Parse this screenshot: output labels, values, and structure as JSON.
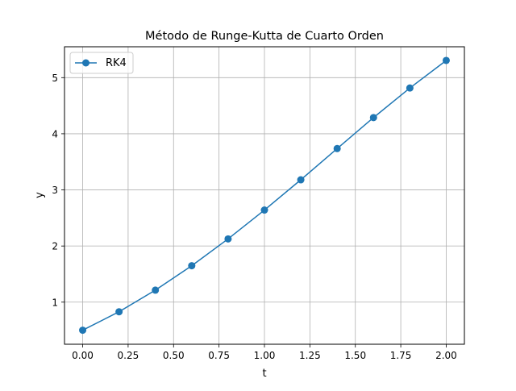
{
  "chart_data": {
    "type": "line",
    "title": "Método de Runge-Kutta de Cuarto Orden",
    "xlabel": "t",
    "ylabel": "y",
    "xlim": [
      -0.1,
      2.1
    ],
    "ylim": [
      0.25,
      5.55
    ],
    "xticks": [
      0.0,
      0.25,
      0.5,
      0.75,
      1.0,
      1.25,
      1.5,
      1.75,
      2.0
    ],
    "xtick_labels": [
      "0.00",
      "0.25",
      "0.50",
      "0.75",
      "1.00",
      "1.25",
      "1.50",
      "1.75",
      "2.00"
    ],
    "yticks": [
      1,
      2,
      3,
      4,
      5
    ],
    "ytick_labels": [
      "1",
      "2",
      "3",
      "4",
      "5"
    ],
    "grid": true,
    "legend_placement": "top-left",
    "series": [
      {
        "name": "RK4",
        "color": "#1f77b4",
        "marker": "circle",
        "x": [
          0.0,
          0.2,
          0.4,
          0.6,
          0.8,
          1.0,
          1.2,
          1.4,
          1.6,
          1.8,
          2.0
        ],
        "y": [
          0.5,
          0.829,
          1.214,
          1.649,
          2.127,
          2.641,
          3.18,
          3.736,
          4.288,
          4.815,
          5.306
        ]
      }
    ]
  }
}
